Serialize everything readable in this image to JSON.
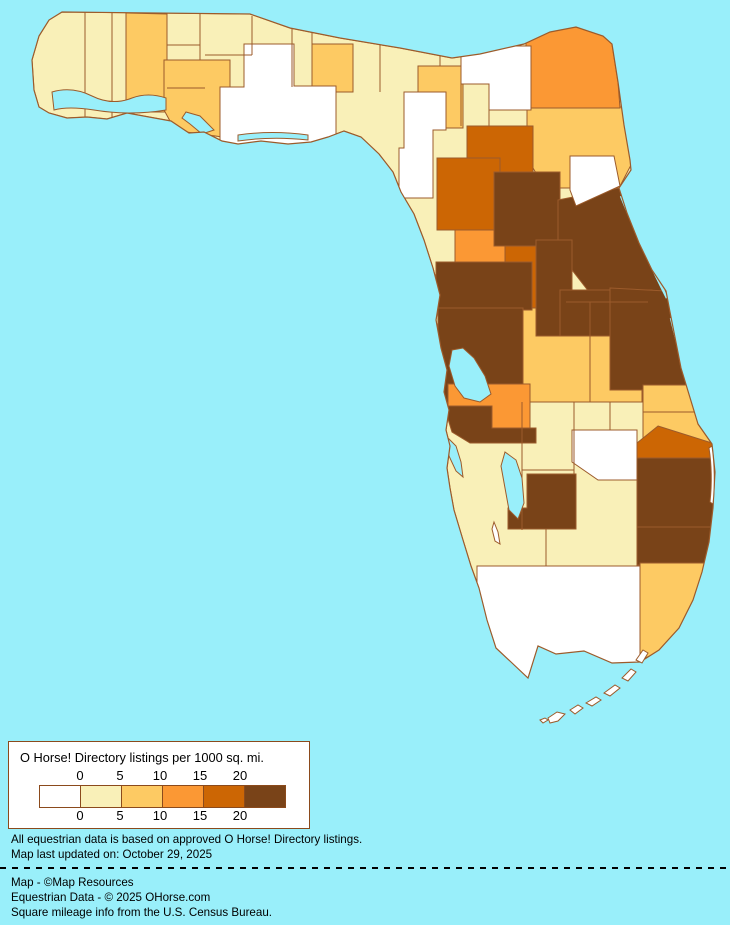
{
  "map": {
    "name": "Florida counties choropleth of O Horse! Directory listing density",
    "background_color": "#99EFFA",
    "land_border_color": "#9C5B2B",
    "bucket_colors": {
      "b0": "#FFFFFF",
      "b1": "#F9F0B8",
      "b2": "#FDCA63",
      "b3": "#FB9834",
      "b4": "#CC6604",
      "b5": "#794318"
    }
  },
  "legend": {
    "title": "O Horse! Directory listings per 1000 sq. mi.",
    "ticks_top": [
      "0",
      "5",
      "10",
      "15",
      "20"
    ],
    "ticks_bottom": [
      "0",
      "5",
      "10",
      "15",
      "20"
    ],
    "swatches": [
      "#FFFFFF",
      "#F9F0B8",
      "#FDCA63",
      "#FB9834",
      "#CC6604",
      "#794318"
    ],
    "swatch_border_color": "#8B4A1C",
    "box_border_color": "#8B4A1C",
    "box_background": "#FFFFFF"
  },
  "notes": {
    "line1": "All equestrian data is based on approved O Horse! Directory listings.",
    "line2": "Map last updated on: October 29, 2025"
  },
  "credits": {
    "line1": "Map - ©Map Resources",
    "line2": "Equestrian Data - © 2025 OHorse.com",
    "line3": "Square mileage info from the U.S. Census Bureau."
  }
}
